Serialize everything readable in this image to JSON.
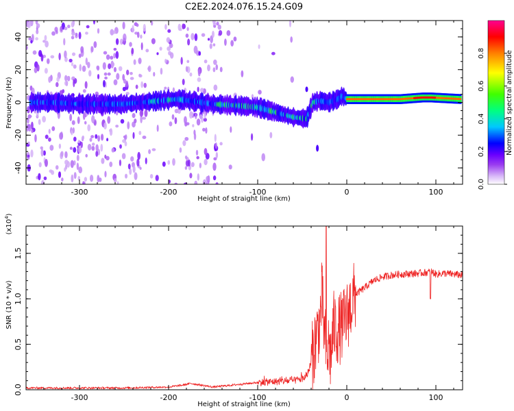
{
  "title": "C2E2.2024.076.15.24.G09",
  "chart_data": [
    {
      "type": "heatmap",
      "title": "C2E2.2024.076.15.24.G09",
      "xlabel": "Height of straight line (km)",
      "ylabel": "Frequency (Hz)",
      "xlim": [
        -360,
        130
      ],
      "ylim": [
        -50,
        50
      ],
      "x_ticks": [
        -300,
        -200,
        -100,
        0,
        100
      ],
      "y_ticks": [
        -40,
        -20,
        0,
        20,
        40
      ],
      "colorbar": {
        "label": "Normalized spectral amplitude",
        "range": [
          0.0,
          1.0
        ],
        "ticks": [
          0.0,
          0.2,
          0.4,
          0.6,
          0.8
        ],
        "colors": [
          "#ffffff",
          "#d8b8f8",
          "#9a3cf0",
          "#6a00ff",
          "#0000ff",
          "#00c8ff",
          "#00ff80",
          "#40ff00",
          "#ffff00",
          "#ff8000",
          "#ff0000",
          "#ff0090"
        ]
      },
      "ridge": {
        "x": [
          -360,
          -330,
          -300,
          -250,
          -210,
          -190,
          -150,
          -120,
          -100,
          -80,
          -60,
          -45,
          -38,
          -30,
          -20,
          -10,
          -5,
          0,
          20,
          60,
          85,
          95,
          130
        ],
        "y": [
          0,
          0,
          -1,
          -1,
          1,
          2,
          -1,
          -2,
          -3,
          -6,
          -9,
          -10,
          0,
          1,
          0,
          2,
          4,
          2,
          2,
          2,
          3,
          3,
          2
        ]
      }
    },
    {
      "type": "line",
      "xlabel": "Height of straight line (km)",
      "ylabel": "SNR (10 * v/v)",
      "y_multiplier": "(x10",
      "y_exponent": "4",
      "y_multiplier_close": ")",
      "xlim": [
        -360,
        130
      ],
      "ylim": [
        0.0,
        1.8
      ],
      "x_ticks": [
        -300,
        -200,
        -100,
        0,
        100
      ],
      "y_ticks": [
        0.0,
        0.5,
        1.0,
        1.5
      ],
      "series": [
        {
          "color": "#ee2222",
          "x": [
            -360,
            -300,
            -250,
            -200,
            -185,
            -175,
            -150,
            -120,
            -100,
            -80,
            -60,
            -50,
            -45,
            -40,
            -35,
            -30,
            -28,
            -25,
            -22,
            -20,
            -18,
            -15,
            -10,
            -5,
            0,
            5,
            10,
            20,
            30,
            40,
            50,
            60,
            80,
            90,
            95,
            100,
            110,
            120,
            130
          ],
          "y": [
            0.02,
            0.02,
            0.02,
            0.03,
            0.05,
            0.07,
            0.03,
            0.06,
            0.08,
            0.09,
            0.1,
            0.12,
            0.15,
            0.3,
            0.55,
            0.75,
            1.05,
            0.6,
            0.35,
            0.5,
            0.35,
            0.7,
            0.65,
            0.7,
            0.8,
            0.95,
            1.05,
            1.12,
            1.2,
            1.24,
            1.26,
            1.27,
            1.28,
            1.29,
            1.3,
            1.27,
            1.28,
            1.27,
            1.26
          ],
          "noise": 0.04,
          "spike": {
            "x": -23,
            "y": 1.8
          }
        }
      ]
    }
  ]
}
